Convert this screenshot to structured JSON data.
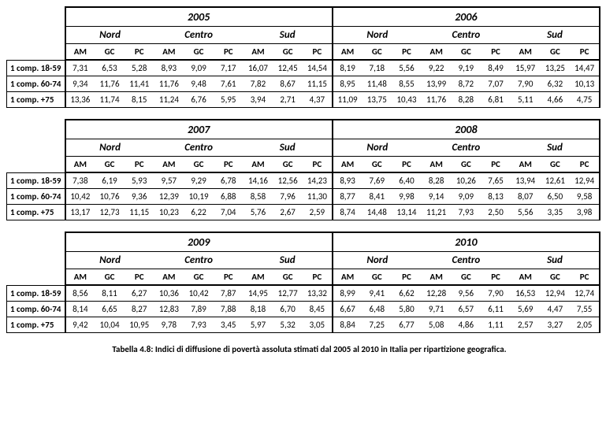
{
  "labels": {
    "am": "AM",
    "gc": "GC",
    "pc": "PC",
    "nord": "Nord",
    "centro": "Centro",
    "sud": "Sud",
    "r1": "1 comp. 18-59",
    "r2": "1 comp. 60-74",
    "r3": "1 comp. +75"
  },
  "caption": "Tabella 4.8: Indici di diffusione di povertà assoluta stimati dal 2005 al 2010 in Italia per ripartizione geografica.",
  "blocks": [
    {
      "leftYear": "2005",
      "rightYear": "2006",
      "rows": [
        [
          "7,31",
          "6,53",
          "5,28",
          "8,93",
          "9,09",
          "7,17",
          "16,07",
          "12,45",
          "14,54",
          "8,19",
          "7,18",
          "5,56",
          "9,22",
          "9,19",
          "8,49",
          "15,97",
          "13,25",
          "14,47"
        ],
        [
          "9,34",
          "11,76",
          "11,41",
          "11,76",
          "9,48",
          "7,61",
          "7,82",
          "8,67",
          "11,15",
          "8,95",
          "11,48",
          "8,55",
          "13,99",
          "8,72",
          "7,07",
          "7,90",
          "6,32",
          "10,13"
        ],
        [
          "13,36",
          "11,74",
          "8,15",
          "11,24",
          "6,76",
          "5,95",
          "3,94",
          "2,71",
          "4,37",
          "11,09",
          "13,75",
          "10,43",
          "11,76",
          "8,28",
          "6,81",
          "5,11",
          "4,66",
          "4,75"
        ]
      ]
    },
    {
      "leftYear": "2007",
      "rightYear": "2008",
      "rows": [
        [
          "7,38",
          "6,19",
          "5,93",
          "9,57",
          "9,29",
          "6,78",
          "14,16",
          "12,56",
          "14,23",
          "8,93",
          "7,69",
          "6,40",
          "8,28",
          "10,26",
          "7,65",
          "13,94",
          "12,61",
          "12,94"
        ],
        [
          "10,42",
          "10,76",
          "9,36",
          "12,39",
          "10,19",
          "6,88",
          "8,58",
          "7,96",
          "11,30",
          "8,77",
          "8,41",
          "9,98",
          "9,14",
          "9,09",
          "8,13",
          "8,07",
          "6,50",
          "9,58"
        ],
        [
          "13,17",
          "12,73",
          "11,15",
          "10,23",
          "6,22",
          "7,04",
          "5,76",
          "2,67",
          "2,59",
          "8,74",
          "14,48",
          "13,14",
          "11,21",
          "7,93",
          "2,50",
          "5,56",
          "3,35",
          "3,98"
        ]
      ]
    },
    {
      "leftYear": "2009",
      "rightYear": "2010",
      "rows": [
        [
          "8,56",
          "8,11",
          "6,27",
          "10,36",
          "10,42",
          "7,87",
          "14,95",
          "12,77",
          "13,32",
          "8,99",
          "9,41",
          "6,62",
          "12,28",
          "9,56",
          "7,90",
          "16,53",
          "12,94",
          "12,74"
        ],
        [
          "8,14",
          "6,65",
          "8,27",
          "12,83",
          "7,89",
          "7,88",
          "8,18",
          "6,70",
          "8,45",
          "6,67",
          "6,48",
          "5,80",
          "9,71",
          "6,57",
          "6,11",
          "5,69",
          "4,47",
          "7,55"
        ],
        [
          "9,42",
          "10,04",
          "10,95",
          "9,78",
          "7,93",
          "3,45",
          "5,97",
          "5,32",
          "3,05",
          "8,84",
          "7,25",
          "6,77",
          "5,08",
          "4,86",
          "1,11",
          "2,57",
          "3,27",
          "2,05"
        ]
      ]
    }
  ]
}
